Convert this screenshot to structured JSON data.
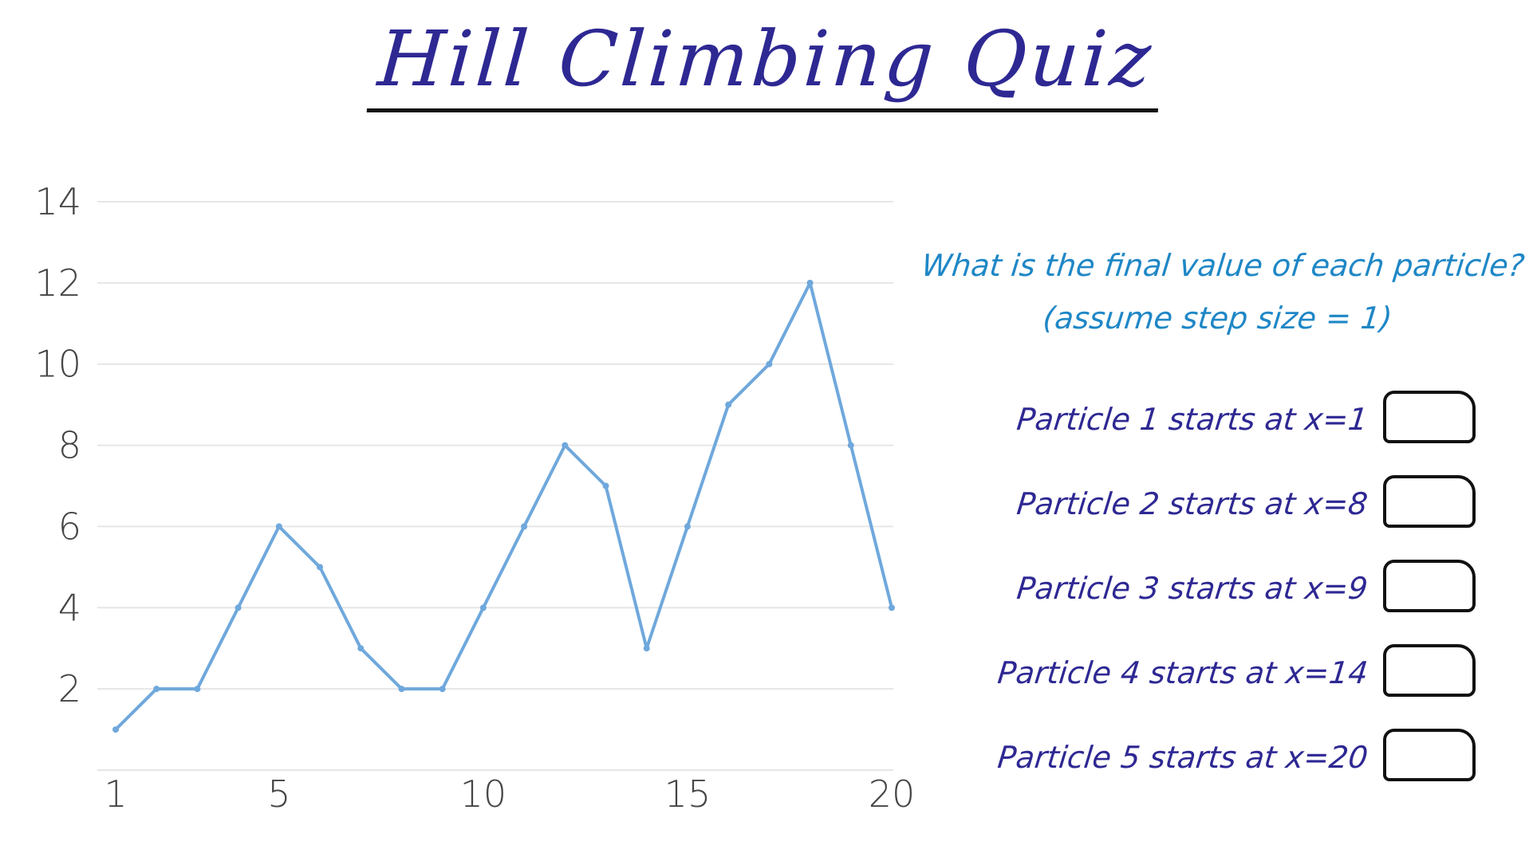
{
  "title": "Hill Climbing Quiz",
  "question": {
    "line1": "What is the final value of each particle?",
    "line2": "(assume step size = 1)"
  },
  "particles": [
    {
      "label": "Particle 1 starts at x=1",
      "answer": ""
    },
    {
      "label": "Particle 2 starts at x=8",
      "answer": ""
    },
    {
      "label": "Particle 3 starts at x=9",
      "answer": ""
    },
    {
      "label": "Particle 4 starts at x=14",
      "answer": ""
    },
    {
      "label": "Particle 5 starts at x=20",
      "answer": ""
    }
  ],
  "colors": {
    "title": "#2e2893",
    "question": "#1f87c6",
    "line": "#6fa8dc",
    "grid": "#e6e6e6"
  },
  "chart_data": {
    "type": "line",
    "title": "",
    "xlabel": "",
    "ylabel": "",
    "x": [
      1,
      2,
      3,
      4,
      5,
      6,
      7,
      8,
      9,
      10,
      11,
      12,
      13,
      14,
      15,
      16,
      17,
      18,
      19,
      20
    ],
    "y": [
      1,
      2,
      2,
      4,
      6,
      5,
      3,
      2,
      2,
      4,
      6,
      8,
      7,
      3,
      6,
      9,
      10,
      12,
      8,
      4
    ],
    "xticks": [
      1,
      5,
      10,
      15,
      20
    ],
    "yticks": [
      2,
      4,
      6,
      8,
      10,
      12,
      14
    ],
    "xlim": [
      1,
      20
    ],
    "ylim": [
      0,
      14
    ],
    "grid": true,
    "legend": "none"
  }
}
